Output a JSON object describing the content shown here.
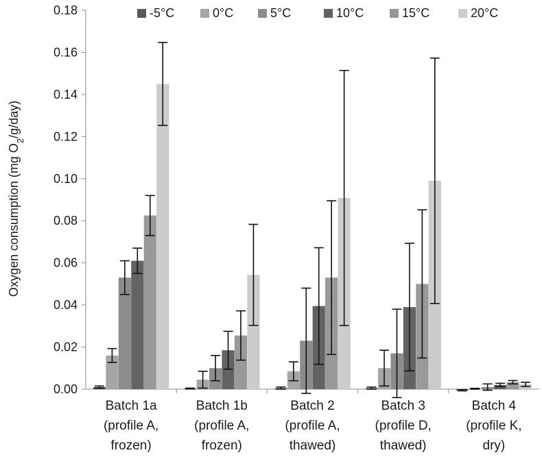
{
  "chart_data": {
    "type": "bar",
    "ylabel_prefix": "Oxygen consumption (mg O",
    "ylabel_sub": "2",
    "ylabel_suffix": "/g/day)",
    "ylim": [
      0,
      0.18
    ],
    "yticks": [
      "0.00",
      "0.02",
      "0.04",
      "0.06",
      "0.08",
      "0.10",
      "0.12",
      "0.14",
      "0.16",
      "0.18"
    ],
    "grid": false,
    "legend_position": "top",
    "categories": [
      [
        "Batch 1a",
        "(profile A,",
        "frozen)"
      ],
      [
        "Batch 1b",
        "(profile A,",
        "frozen)"
      ],
      [
        "Batch 2",
        "(profile A,",
        "thawed)"
      ],
      [
        "Batch 3",
        "(profile D,",
        "thawed)"
      ],
      [
        "Batch 4",
        "(profile K,",
        "dry)"
      ]
    ],
    "series": [
      {
        "name": "-5°C",
        "color": "#595959",
        "values": [
          0.001,
          0.0003,
          0.0005,
          0.0005,
          -0.0005
        ],
        "errors": [
          0.0005,
          0.0002,
          0.0005,
          0.0005,
          0.0003
        ]
      },
      {
        "name": "0°C",
        "color": "#a6a6a6",
        "values": [
          0.016,
          0.0045,
          0.0085,
          0.01,
          0.0002
        ],
        "errors": [
          0.0033,
          0.004,
          0.0045,
          0.0085,
          0.0002
        ]
      },
      {
        "name": "5°C",
        "color": "#8c8c8c",
        "values": [
          0.053,
          0.01,
          0.023,
          0.017,
          0.001
        ],
        "errors": [
          0.008,
          0.006,
          0.025,
          0.021,
          0.0015
        ]
      },
      {
        "name": "10°C",
        "color": "#636363",
        "values": [
          0.061,
          0.0185,
          0.0395,
          0.039,
          0.002
        ],
        "errors": [
          0.006,
          0.009,
          0.0277,
          0.0303,
          0.0008
        ]
      },
      {
        "name": "15°C",
        "color": "#999999",
        "values": [
          0.0825,
          0.0255,
          0.053,
          0.05,
          0.0033
        ],
        "errors": [
          0.0095,
          0.0117,
          0.0365,
          0.0352,
          0.0008
        ]
      },
      {
        "name": "20°C",
        "color": "#cccccc",
        "values": [
          0.145,
          0.0543,
          0.0908,
          0.099,
          0.0023
        ],
        "errors": [
          0.0197,
          0.024,
          0.0606,
          0.0583,
          0.001
        ]
      }
    ]
  }
}
